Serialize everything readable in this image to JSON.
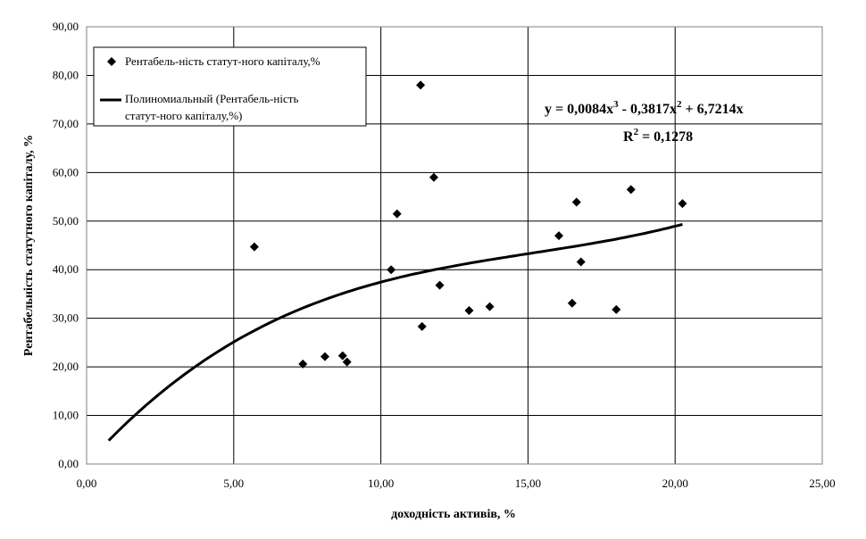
{
  "chart_data": {
    "type": "scatter",
    "xlabel": "доходність активів, %",
    "ylabel": "Рентабельність статутного капіталу, %",
    "xlim": [
      0,
      25
    ],
    "ylim": [
      0,
      90
    ],
    "x_ticks": [
      "0,00",
      "5,00",
      "10,00",
      "15,00",
      "20,00",
      "25,00"
    ],
    "y_ticks": [
      "0,00",
      "10,00",
      "20,00",
      "30,00",
      "40,00",
      "50,00",
      "60,00",
      "70,00",
      "80,00",
      "90,00"
    ],
    "grid": true,
    "legend_position": "top-left",
    "series": [
      {
        "name": "Рентабель-ність статут-ного капіталу,%",
        "kind": "scatter",
        "marker": "diamond",
        "color": "#000000",
        "points": [
          [
            5.7,
            44.7
          ],
          [
            7.35,
            20.6
          ],
          [
            8.1,
            22.1
          ],
          [
            8.7,
            22.3
          ],
          [
            8.85,
            21.0
          ],
          [
            10.35,
            40.0
          ],
          [
            10.55,
            51.5
          ],
          [
            11.35,
            78.0
          ],
          [
            11.4,
            28.3
          ],
          [
            11.8,
            59.0
          ],
          [
            12.0,
            36.8
          ],
          [
            13.0,
            31.6
          ],
          [
            13.7,
            32.4
          ],
          [
            16.05,
            47.0
          ],
          [
            16.5,
            33.1
          ],
          [
            16.65,
            53.9
          ],
          [
            16.8,
            41.6
          ],
          [
            18.0,
            31.8
          ],
          [
            18.5,
            56.5
          ],
          [
            20.25,
            53.6
          ]
        ]
      },
      {
        "name": "Полиномиальный (Рентабель-ність статут-ного капіталу,%)",
        "kind": "trendline",
        "color": "#000000",
        "x_range": [
          0.75,
          20.25
        ],
        "coefficients": {
          "a3": 0.0084,
          "a2": -0.3817,
          "a1": 6.7214,
          "a0": 0
        }
      }
    ],
    "annotations": {
      "equation_parts": [
        "y = 0,0084x",
        "3",
        " - 0,3817x",
        "2",
        " + 6,7214x"
      ],
      "r2_parts": [
        "R",
        "2",
        " = 0,1278"
      ]
    }
  }
}
